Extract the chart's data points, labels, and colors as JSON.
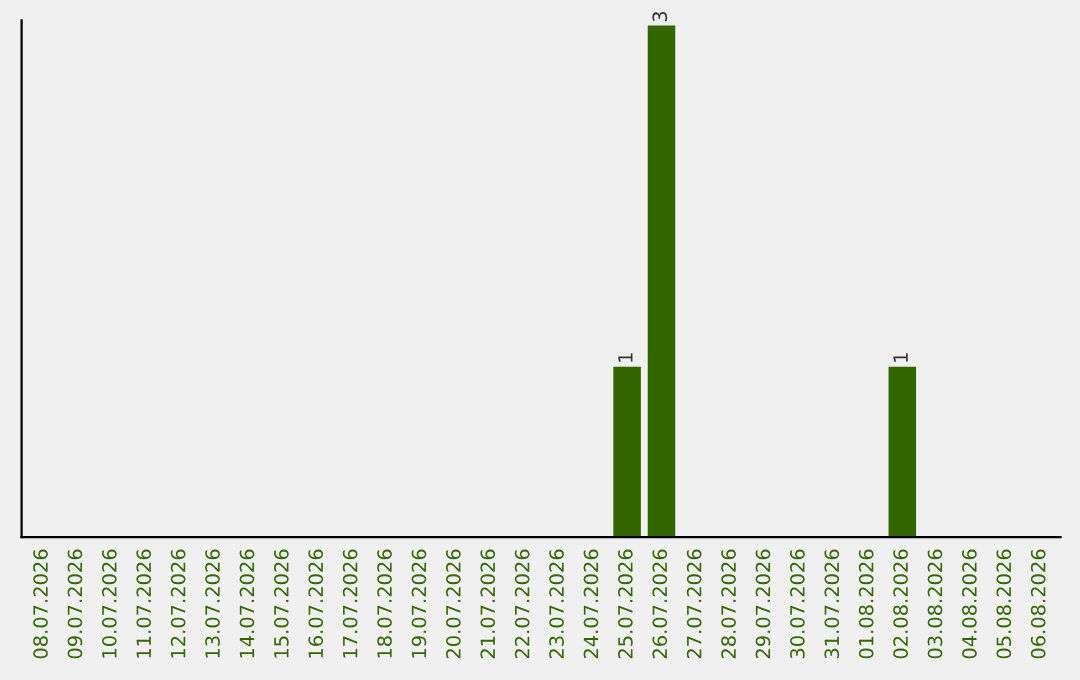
{
  "chart_data": {
    "type": "bar",
    "categories": [
      "08.07.2026",
      "09.07.2026",
      "10.07.2026",
      "11.07.2026",
      "12.07.2026",
      "13.07.2026",
      "14.07.2026",
      "15.07.2026",
      "16.07.2026",
      "17.07.2026",
      "18.07.2026",
      "19.07.2026",
      "20.07.2026",
      "21.07.2026",
      "22.07.2026",
      "23.07.2026",
      "24.07.2026",
      "25.07.2026",
      "26.07.2026",
      "27.07.2026",
      "28.07.2026",
      "29.07.2026",
      "30.07.2026",
      "31.07.2026",
      "01.08.2026",
      "02.08.2026",
      "03.08.2026",
      "04.08.2026",
      "05.08.2026",
      "06.08.2026"
    ],
    "values": [
      null,
      null,
      null,
      null,
      null,
      null,
      null,
      null,
      null,
      null,
      null,
      null,
      null,
      null,
      null,
      null,
      null,
      1,
      3,
      null,
      null,
      null,
      null,
      null,
      null,
      1,
      null,
      null,
      null,
      null
    ],
    "value_labels": [
      null,
      null,
      null,
      null,
      null,
      null,
      null,
      null,
      null,
      null,
      null,
      null,
      null,
      null,
      null,
      null,
      null,
      "1",
      "3",
      null,
      null,
      null,
      null,
      null,
      null,
      "1",
      null,
      null,
      null,
      null
    ],
    "color": "#336600",
    "grid": false,
    "legend": false
  }
}
